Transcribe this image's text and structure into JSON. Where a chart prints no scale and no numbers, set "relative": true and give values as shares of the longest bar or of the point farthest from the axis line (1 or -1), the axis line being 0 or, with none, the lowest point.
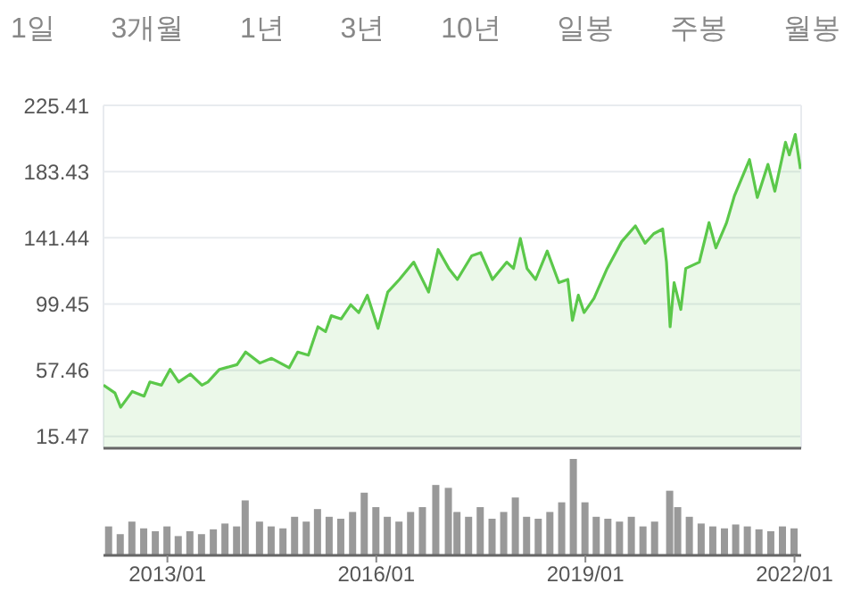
{
  "chart_data": [
    {
      "type": "area",
      "annotations": [
        "1일",
        "3개월",
        "1년",
        "3년",
        "10년",
        "일봉",
        "주봉",
        "월봉"
      ],
      "x": [
        "2012-02-01",
        "2012-04-01",
        "2012-05-01",
        "2012-07-01",
        "2012-09-01",
        "2012-10-01",
        "2012-12-01",
        "2013-01-15",
        "2013-03-01",
        "2013-05-01",
        "2013-07-01",
        "2013-08-01",
        "2013-10-01",
        "2014-01-01",
        "2014-02-15",
        "2014-05-01",
        "2014-07-01",
        "2014-10-01",
        "2014-11-15",
        "2015-01-10",
        "2015-03-01",
        "2015-04-10",
        "2015-05-10",
        "2015-07-01",
        "2015-08-20",
        "2015-10-01",
        "2015-11-15",
        "2016-01-10",
        "2016-03-01",
        "2016-05-01",
        "2016-07-15",
        "2016-10-01",
        "2016-11-20",
        "2017-01-15",
        "2017-03-01",
        "2017-05-15",
        "2017-07-01",
        "2017-09-01",
        "2017-11-15",
        "2017-12-20",
        "2018-01-25",
        "2018-03-01",
        "2018-04-15",
        "2018-06-15",
        "2018-08-15",
        "2018-10-01",
        "2018-10-25",
        "2018-11-25",
        "2018-12-25",
        "2019-02-15",
        "2019-04-25",
        "2019-07-10",
        "2019-09-20",
        "2019-11-10",
        "2019-12-25",
        "2020-02-10",
        "2020-03-01",
        "2020-03-20",
        "2020-04-10",
        "2020-05-15",
        "2020-06-10",
        "2020-08-20",
        "2020-10-10",
        "2020-11-15",
        "2021-01-10",
        "2021-02-20",
        "2021-05-10",
        "2021-06-20",
        "2021-08-15",
        "2021-09-20",
        "2021-11-15",
        "2021-12-05",
        "2022-01-05",
        "2022-02-01"
      ],
      "series": [
        {
          "color": "#5bc84a",
          "values": [
            48,
            43,
            34,
            44,
            41,
            50,
            48,
            58,
            50,
            55,
            48,
            50,
            58,
            61,
            69,
            62,
            65,
            59,
            69,
            67,
            85,
            82,
            92,
            90,
            99,
            94,
            105,
            84,
            107,
            115,
            126,
            107,
            134,
            122,
            115,
            130,
            132,
            115,
            126,
            122,
            141,
            122,
            115,
            133,
            113,
            115,
            89,
            105,
            94,
            103,
            122,
            139,
            149,
            138,
            144,
            147,
            126,
            85,
            113,
            96,
            122,
            126,
            151,
            135,
            151,
            168,
            191,
            167,
            188,
            171,
            202,
            194,
            207,
            185
          ]
        }
      ],
      "xlim": [
        "2012-02-01",
        "2022-02-05"
      ],
      "xticks": [
        {
          "value": "2013-01-01",
          "label": null
        },
        {
          "value": "2016-01-01",
          "label": null
        },
        {
          "value": "2019-01-01",
          "label": null
        },
        {
          "value": "2022-01-01",
          "label": null
        }
      ],
      "ylim": [
        8,
        225.41
      ],
      "yticks": [
        15.47,
        57.46,
        99.45,
        141.44,
        183.43,
        225.41
      ],
      "grid": true,
      "tick_labels": "y"
    },
    {
      "type": "bar",
      "relative": true,
      "tick_labels": "x",
      "x": [
        "2012-03-01",
        "2012-05-01",
        "2012-07-01",
        "2012-09-01",
        "2012-11-01",
        "2013-01-01",
        "2013-03-01",
        "2013-05-01",
        "2013-07-01",
        "2013-09-01",
        "2013-11-01",
        "2014-01-01",
        "2014-02-15",
        "2014-05-01",
        "2014-07-01",
        "2014-09-01",
        "2014-11-01",
        "2015-01-01",
        "2015-03-01",
        "2015-05-01",
        "2015-07-01",
        "2015-09-01",
        "2015-11-01",
        "2016-01-01",
        "2016-03-01",
        "2016-05-01",
        "2016-07-01",
        "2016-09-01",
        "2016-11-10",
        "2017-01-15",
        "2017-03-01",
        "2017-05-01",
        "2017-07-01",
        "2017-09-01",
        "2017-11-01",
        "2018-01-01",
        "2018-03-01",
        "2018-05-01",
        "2018-07-01",
        "2018-09-01",
        "2018-11-01",
        "2019-01-01",
        "2019-03-01",
        "2019-05-01",
        "2019-07-01",
        "2019-09-01",
        "2019-11-01",
        "2020-01-01",
        "2020-03-20",
        "2020-05-01",
        "2020-07-01",
        "2020-09-01",
        "2020-11-01",
        "2021-01-01",
        "2021-03-01",
        "2021-05-01",
        "2021-07-01",
        "2021-09-01",
        "2021-11-01",
        "2022-01-01"
      ],
      "series": [
        {
          "color": "#999999",
          "values": [
            0.3,
            0.22,
            0.35,
            0.28,
            0.25,
            0.3,
            0.2,
            0.25,
            0.22,
            0.27,
            0.33,
            0.3,
            0.57,
            0.35,
            0.3,
            0.28,
            0.4,
            0.35,
            0.48,
            0.4,
            0.38,
            0.45,
            0.65,
            0.5,
            0.4,
            0.35,
            0.45,
            0.5,
            0.73,
            0.7,
            0.45,
            0.4,
            0.5,
            0.38,
            0.45,
            0.6,
            0.4,
            0.38,
            0.45,
            0.55,
            1.0,
            0.55,
            0.4,
            0.38,
            0.35,
            0.4,
            0.3,
            0.35,
            0.67,
            0.5,
            0.4,
            0.33,
            0.3,
            0.28,
            0.32,
            0.3,
            0.27,
            0.25,
            0.3,
            0.28
          ]
        }
      ],
      "xlim": [
        "2012-02-01",
        "2022-02-05"
      ],
      "xticks": [
        {
          "value": "2013-01-01",
          "label": "2013/01"
        },
        {
          "value": "2016-01-01",
          "label": "2016/01"
        },
        {
          "value": "2019-01-01",
          "label": "2019/01"
        },
        {
          "value": "2022-01-01",
          "label": "2022/01"
        }
      ]
    }
  ]
}
